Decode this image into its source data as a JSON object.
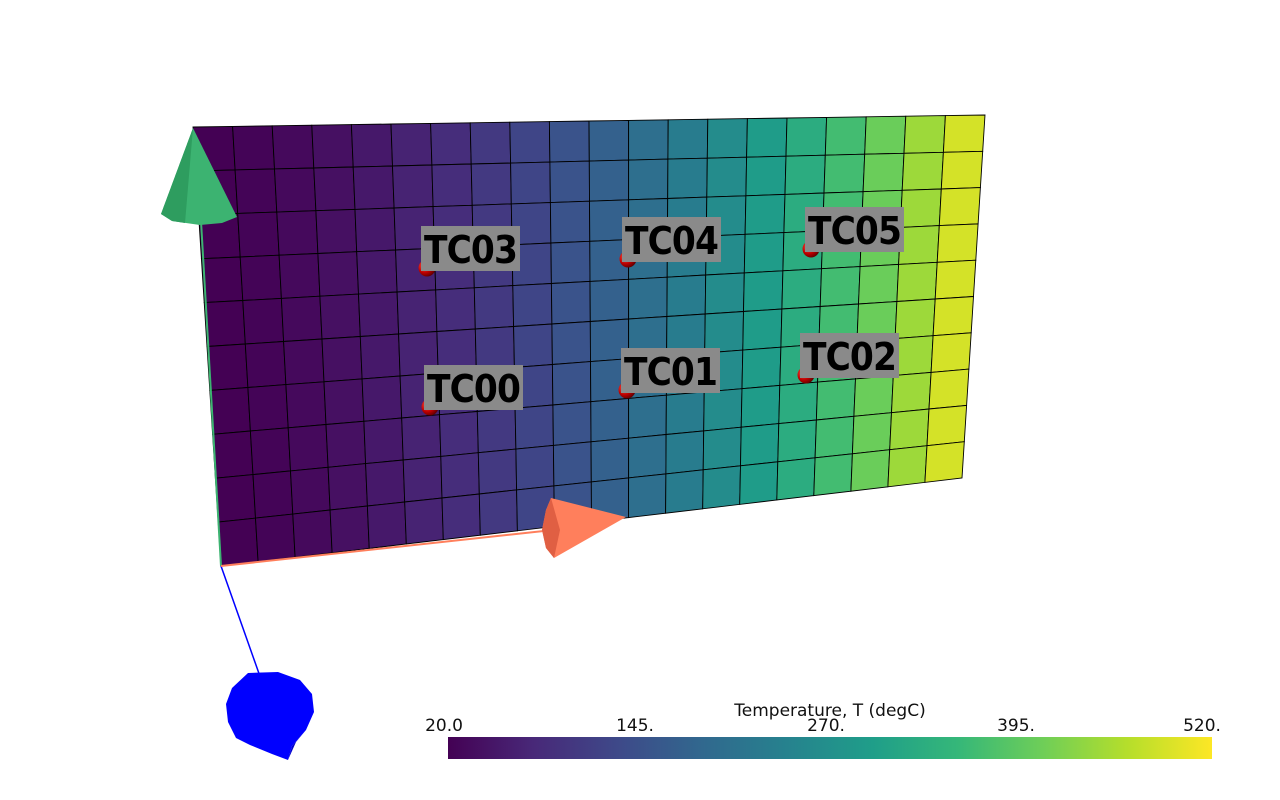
{
  "viewport": {
    "background": "#ffffff"
  },
  "colormap": {
    "name": "viridis",
    "stops": [
      "#440154",
      "#482878",
      "#3e4989",
      "#31688e",
      "#26828e",
      "#1f9e89",
      "#35b779",
      "#6ece58",
      "#b5de2b",
      "#fde725"
    ]
  },
  "axes": {
    "x_color": "#ff7f5c",
    "y_color": "#3cb371",
    "z_color": "#0000ff"
  },
  "probes": [
    {
      "label": "TC03",
      "temperature": 95
    },
    {
      "label": "TC04",
      "temperature": 205
    },
    {
      "label": "TC05",
      "temperature": 320
    },
    {
      "label": "TC00",
      "temperature": 95
    },
    {
      "label": "TC01",
      "temperature": 205
    },
    {
      "label": "TC02",
      "temperature": 320
    }
  ],
  "colorbar": {
    "title": "Temperature, T (degC)",
    "min": 20.0,
    "max": 520.0,
    "tick_labels": [
      "20.0",
      "145.",
      "270.",
      "395.",
      "520."
    ]
  }
}
